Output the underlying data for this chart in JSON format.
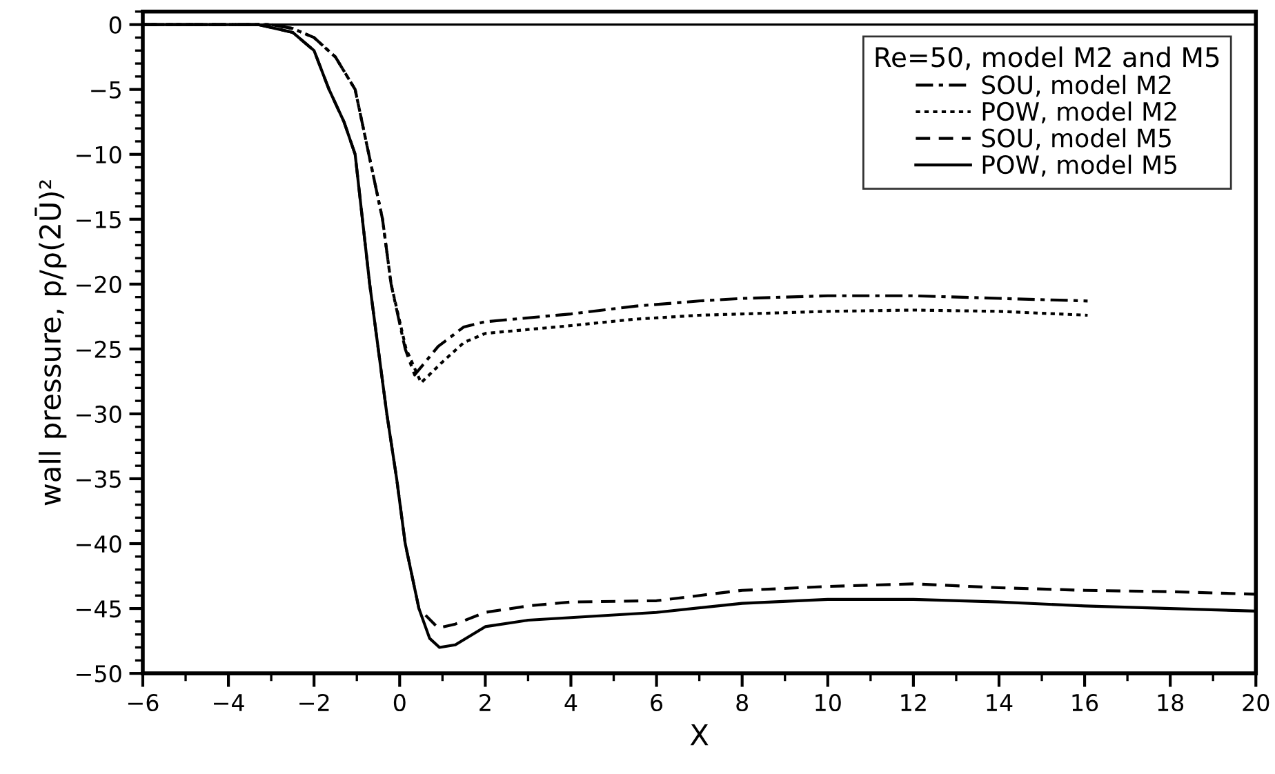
{
  "chart_data": {
    "type": "line",
    "xlabel": "X",
    "ylabel": "wall pressure, p/ρ(2Ū)²",
    "legend_title": "Re=50, model M2 and M5",
    "legend": "top right",
    "grid": false,
    "xlim": [
      -6,
      20
    ],
    "xticks": [
      -6,
      -4,
      -2,
      0,
      2,
      4,
      6,
      8,
      10,
      12,
      14,
      16,
      18,
      20
    ],
    "ylim": [
      -50,
      1
    ],
    "yticks": [
      0,
      -5,
      -10,
      -15,
      -20,
      -25,
      -30,
      -35,
      -40,
      -45,
      -50
    ],
    "ref_lines": [
      {
        "axis": "y",
        "value": 0,
        "color": "#000000",
        "line_style": "solid"
      }
    ],
    "series": [
      {
        "name": "SOU, model M2",
        "color": "#000000",
        "line_style": "dashdot",
        "x": [
          -6,
          -3,
          -2.5,
          -2,
          -1.5,
          -1.04,
          -0.72,
          -0.4,
          -0.2,
          0.13,
          0.35,
          0.6,
          0.9,
          1.5,
          2,
          3,
          4,
          5.5,
          7,
          8,
          10,
          12,
          14,
          16.07
        ],
        "values": [
          0,
          0,
          -0.3,
          -1,
          -2.5,
          -5,
          -10,
          -15,
          -20,
          -25,
          -27,
          -26,
          -24.8,
          -23.3,
          -22.9,
          -22.6,
          -22.3,
          -21.7,
          -21.3,
          -21.1,
          -20.9,
          -20.9,
          -21.1,
          -21.3
        ]
      },
      {
        "name": "POW, model M2",
        "color": "#000000",
        "line_style": "dotted",
        "x": [
          -6,
          -3,
          -2.5,
          -2,
          -1.5,
          -1.04,
          -0.72,
          -0.4,
          -0.2,
          0.15,
          0.5,
          1,
          1.5,
          2,
          3,
          4,
          5.5,
          7,
          8,
          10,
          12,
          14,
          16.07
        ],
        "values": [
          0,
          0,
          -0.3,
          -1,
          -2.5,
          -5,
          -10,
          -15,
          -20,
          -25,
          -27.6,
          -26,
          -24.5,
          -23.8,
          -23.5,
          -23.2,
          -22.7,
          -22.4,
          -22.3,
          -22.1,
          -22,
          -22.1,
          -22.4
        ]
      },
      {
        "name": "SOU, model M5",
        "color": "#000000",
        "line_style": "dashed",
        "x": [
          -6,
          -3.3,
          -2.5,
          -2,
          -1.65,
          -1.3,
          -1.04,
          -0.7,
          -0.3,
          -0.07,
          0.13,
          0.45,
          0.9,
          1.3,
          2,
          3,
          4,
          6,
          8,
          10,
          12,
          14,
          16,
          18,
          20
        ],
        "values": [
          0,
          0,
          -0.6,
          -2,
          -5,
          -7.5,
          -10,
          -20,
          -30,
          -35,
          -40,
          -45,
          -46.5,
          -46.2,
          -45.3,
          -44.8,
          -44.5,
          -44.4,
          -43.6,
          -43.3,
          -43.1,
          -43.4,
          -43.6,
          -43.7,
          -43.9
        ]
      },
      {
        "name": "POW, model M5",
        "color": "#000000",
        "line_style": "solid",
        "x": [
          -6,
          -3.3,
          -2.5,
          -2,
          -1.65,
          -1.3,
          -1.04,
          -0.7,
          -0.3,
          -0.07,
          0.13,
          0.45,
          0.7,
          0.93,
          1.3,
          2,
          3,
          4,
          6,
          8,
          10,
          12,
          14,
          16,
          18,
          20
        ],
        "values": [
          0,
          0,
          -0.6,
          -2,
          -5,
          -7.5,
          -10,
          -20,
          -30,
          -35,
          -40,
          -45,
          -47.3,
          -48,
          -47.8,
          -46.4,
          -45.9,
          -45.7,
          -45.3,
          -44.6,
          -44.3,
          -44.3,
          -44.5,
          -44.8,
          -45,
          -45.2
        ]
      }
    ]
  }
}
